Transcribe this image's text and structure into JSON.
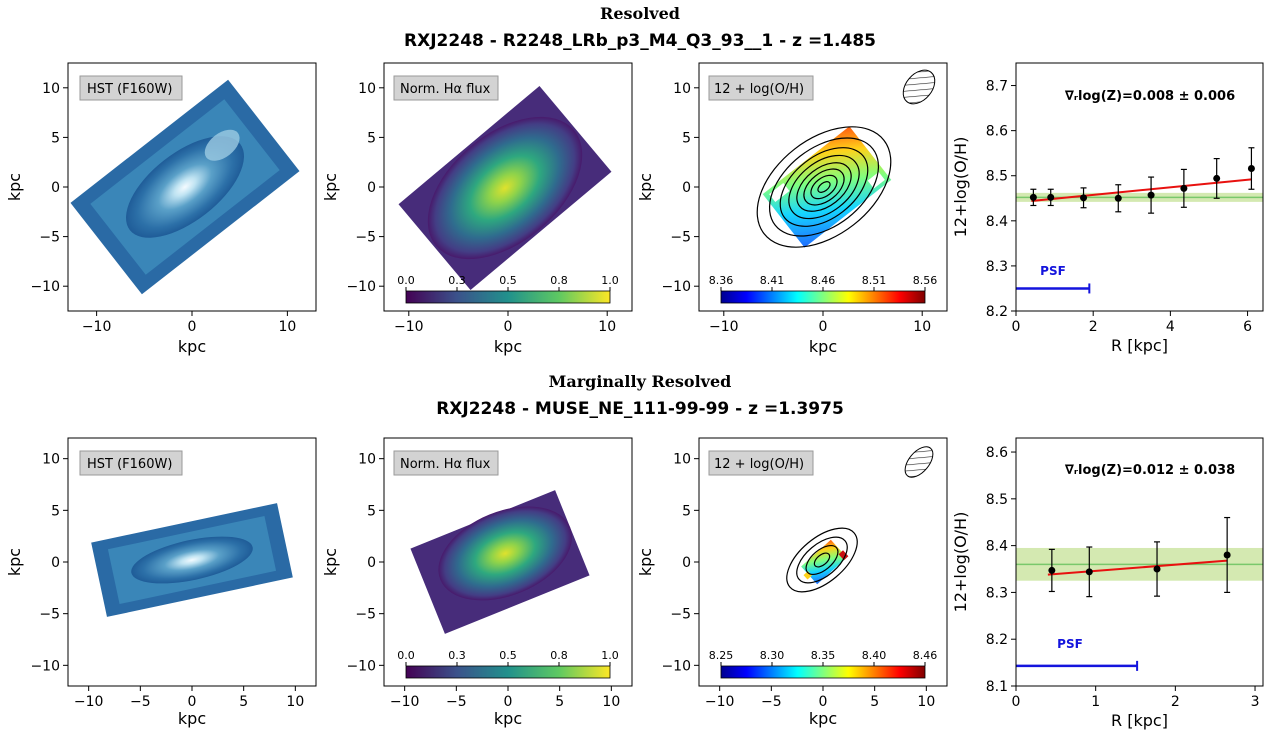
{
  "rows": [
    {
      "kind": "Resolved",
      "title": "RXJ2248 - R2248_LRb_p3_M4_Q3_93__1 - z =1.485",
      "panels": {
        "hst": {
          "label": "HST (F160W)",
          "xticks": [
            -10,
            0,
            10
          ],
          "yticks": [
            10,
            5,
            0,
            -5,
            -10
          ],
          "xlabel": "kpc",
          "ylabel": "kpc",
          "xlim": [
            -13,
            13
          ],
          "ylim": [
            -12.5,
            12.5
          ]
        },
        "ha": {
          "label": "Norm. Hα flux",
          "xticks": [
            -10,
            0,
            10
          ],
          "yticks": [
            10,
            5,
            0,
            -5,
            -10
          ],
          "xlabel": "kpc",
          "ylabel": "kpc",
          "cbar_ticks": [
            "0.0",
            "0.3",
            "0.5",
            "0.8",
            "1.0"
          ]
        },
        "oh": {
          "label": "12 + log(O/H)",
          "xticks": [
            -10,
            0,
            10
          ],
          "yticks": [
            10,
            5,
            0,
            -5,
            -10
          ],
          "xlabel": "kpc",
          "ylabel": "kpc",
          "cbar_ticks": [
            "8.36",
            "8.41",
            "8.46",
            "8.51",
            "8.56"
          ]
        }
      },
      "gradient_label": "∇ᵣlog(Z)=0.008 ± 0.006",
      "psf_label": "PSF"
    },
    {
      "kind": "Marginally Resolved",
      "title": "RXJ2248 - MUSE_NE_111-99-99 - z =1.3975",
      "panels": {
        "hst": {
          "label": "HST (F160W)",
          "xticks": [
            -10,
            -5,
            0,
            5,
            10
          ],
          "yticks": [
            10,
            5,
            0,
            -5,
            -10
          ],
          "xlabel": "kpc",
          "ylabel": "kpc",
          "xlim": [
            -12,
            12
          ],
          "ylim": [
            -12,
            12
          ]
        },
        "ha": {
          "label": "Norm. Hα flux",
          "xticks": [
            -10,
            -5,
            0,
            5,
            10
          ],
          "yticks": [
            10,
            5,
            0,
            -5,
            -10
          ],
          "xlabel": "kpc",
          "ylabel": "kpc",
          "cbar_ticks": [
            "0.0",
            "0.3",
            "0.5",
            "0.8",
            "1.0"
          ]
        },
        "oh": {
          "label": "12 + log(O/H)",
          "xticks": [
            -10,
            -5,
            0,
            5,
            10
          ],
          "yticks": [
            10,
            5,
            0,
            -5,
            -10
          ],
          "xlabel": "kpc",
          "ylabel": "kpc",
          "cbar_ticks": [
            "8.25",
            "8.30",
            "8.35",
            "8.40",
            "8.46"
          ]
        }
      },
      "gradient_label": "∇ᵣlog(Z)=0.012 ± 0.038",
      "psf_label": "PSF"
    }
  ],
  "chart_data": [
    {
      "type": "scatter",
      "xlabel": "R [kpc]",
      "ylabel": "12+log(O/H)",
      "xlim": [
        0,
        6.4
      ],
      "ylim": [
        8.2,
        8.75
      ],
      "xticks": [
        0,
        2,
        4,
        6
      ],
      "yticks": [
        8.2,
        8.3,
        8.4,
        8.5,
        8.6,
        8.7
      ],
      "points": {
        "x": [
          0.45,
          0.9,
          1.75,
          2.65,
          3.5,
          4.35,
          5.2,
          6.1
        ],
        "y": [
          8.452,
          8.452,
          8.451,
          8.45,
          8.457,
          8.472,
          8.494,
          8.516
        ],
        "yerr": [
          0.018,
          0.018,
          0.022,
          0.03,
          0.04,
          0.042,
          0.044,
          0.046
        ]
      },
      "fit": {
        "x": [
          0.4,
          6.1
        ],
        "y": [
          8.444,
          8.492
        ],
        "color": "#e8110f"
      },
      "band": {
        "center": 8.452,
        "low": 8.442,
        "high": 8.462,
        "line_color": "#79c86b",
        "fill_color": "#cfe7a8"
      },
      "psf": {
        "x0": 0,
        "x1": 1.9,
        "y": 8.25,
        "color": "#1414dd"
      }
    },
    {
      "type": "scatter",
      "xlabel": "R [kpc]",
      "ylabel": "12+log(O/H)",
      "xlim": [
        0,
        3.1
      ],
      "ylim": [
        8.1,
        8.63
      ],
      "xticks": [
        0,
        1,
        2,
        3
      ],
      "yticks": [
        8.1,
        8.2,
        8.3,
        8.4,
        8.5,
        8.6
      ],
      "points": {
        "x": [
          0.45,
          0.92,
          1.77,
          2.65
        ],
        "y": [
          8.347,
          8.344,
          8.35,
          8.38
        ],
        "yerr": [
          0.045,
          0.053,
          0.058,
          0.08
        ]
      },
      "fit": {
        "x": [
          0.4,
          2.65
        ],
        "y": [
          8.338,
          8.368
        ],
        "color": "#e8110f"
      },
      "band": {
        "center": 8.36,
        "low": 8.325,
        "high": 8.395,
        "line_color": "#79c86b",
        "fill_color": "#cfe7a8"
      },
      "psf": {
        "x0": 0,
        "x1": 1.52,
        "y": 8.143,
        "color": "#1414dd"
      }
    }
  ]
}
